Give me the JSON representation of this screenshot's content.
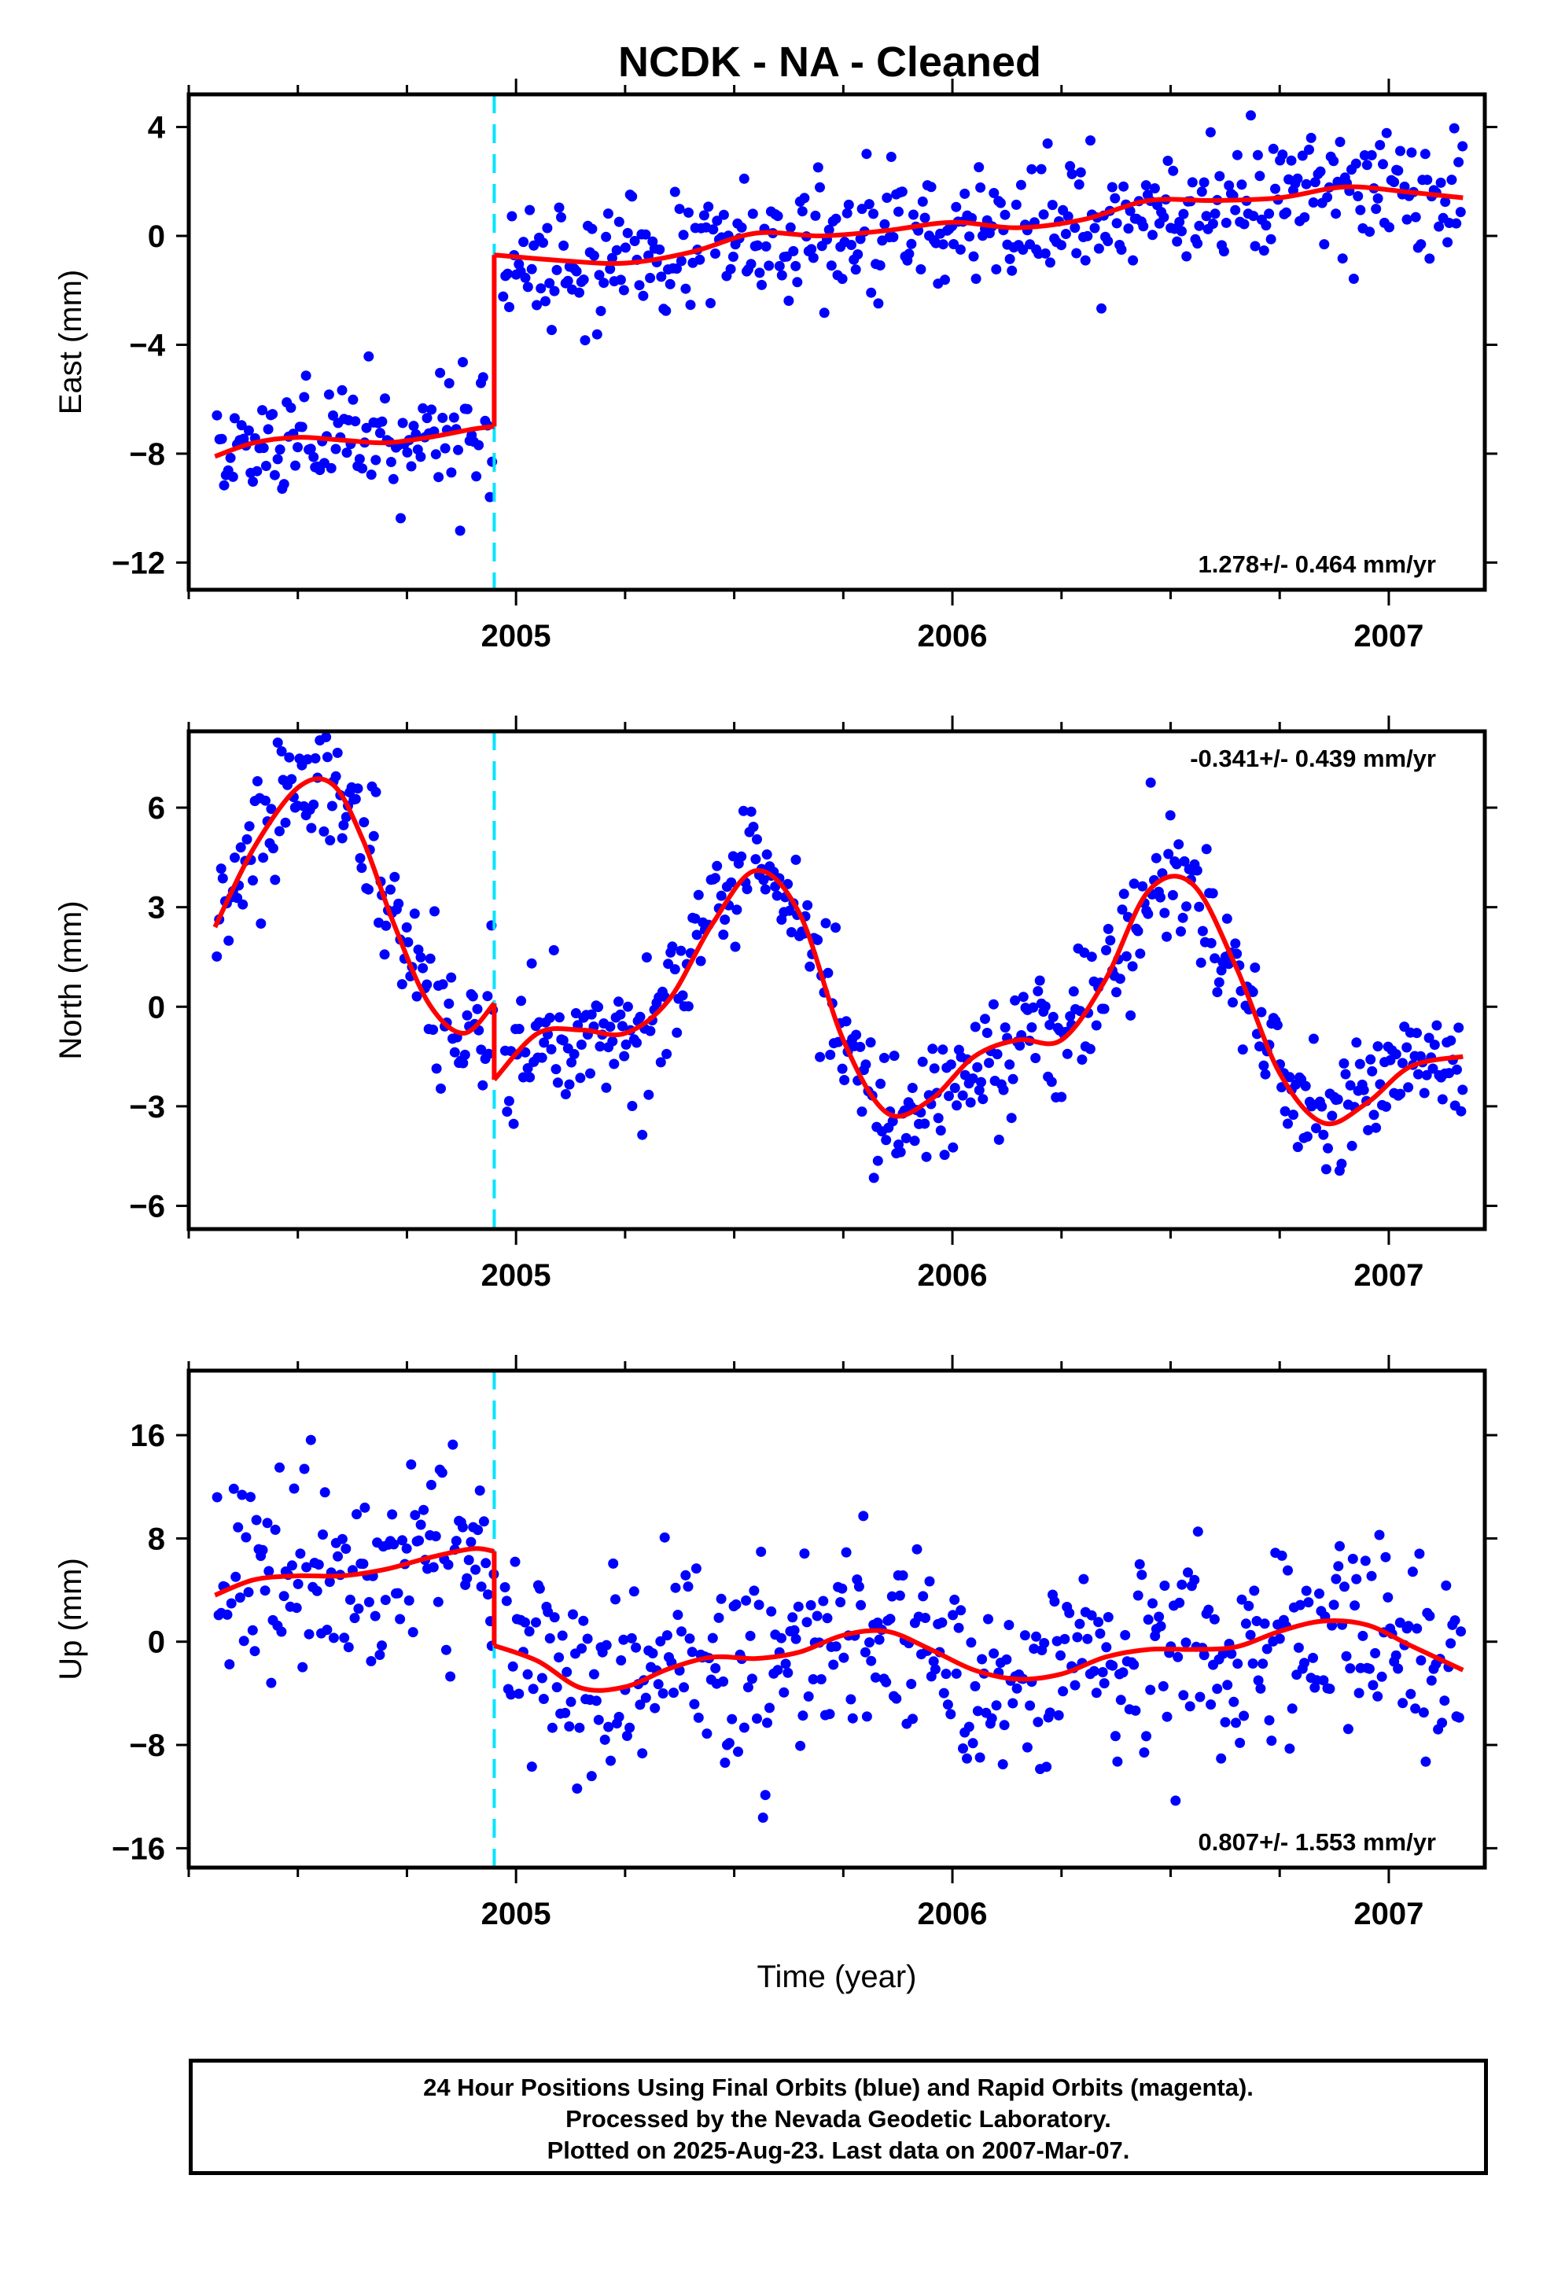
{
  "title": "NCDK  - NA - Cleaned",
  "x_axis_title": "Time (year)",
  "colors": {
    "points": "#0000ff",
    "fit": "#ff0000",
    "break_line": "#00e5ff",
    "frame": "#000000"
  },
  "footer": {
    "line1": "24 Hour Positions Using Final Orbits (blue) and Rapid Orbits (magenta).",
    "line2": "Processed by the Nevada Geodetic Laboratory.",
    "line3": "Plotted on 2025-Aug-23. Last data on 2007-Mar-07."
  },
  "chart_data": [
    {
      "type": "scatter",
      "title": "NCDK  - NA - Cleaned",
      "ylabel": "East (mm)",
      "xlabel": "",
      "xlim": [
        2004.25,
        2007.22
      ],
      "ylim": [
        -13.0,
        5.2
      ],
      "yticks": [
        4,
        0,
        -4,
        -8,
        -12
      ],
      "ytick_labels": [
        "4",
        "0",
        "−4",
        "−8",
        "−12"
      ],
      "xticks": [
        2005,
        2006,
        2007
      ],
      "xtick_labels": [
        "2005",
        "2006",
        "2007"
      ],
      "rate_text": "1.278+/- 0.464 mm/yr",
      "rate_position": "bottom-right",
      "break_epoch": 2004.95,
      "fit_segments": [
        {
          "x": [
            2004.31,
            2004.4,
            2004.5,
            2004.6,
            2004.7,
            2004.8,
            2004.9,
            2004.95
          ],
          "y": [
            -8.1,
            -7.6,
            -7.4,
            -7.5,
            -7.6,
            -7.4,
            -7.1,
            -7.0
          ]
        },
        {
          "x": [
            2004.95,
            2005.1,
            2005.25,
            2005.4,
            2005.55,
            2005.7,
            2005.85,
            2006.0,
            2006.15,
            2006.3,
            2006.45,
            2006.6,
            2006.75,
            2006.9,
            2007.05,
            2007.17
          ],
          "y": [
            -0.7,
            -0.9,
            -1.0,
            -0.6,
            0.1,
            0.0,
            0.2,
            0.5,
            0.3,
            0.6,
            1.3,
            1.3,
            1.4,
            1.8,
            1.6,
            1.4
          ]
        }
      ],
      "series": [
        {
          "name": "Final Orbits",
          "color": "#0000ff",
          "sampling": {
            "x_start": 2004.31,
            "x_end": 2007.17,
            "count": 560,
            "gap": [
              2004.95,
              2004.97
            ],
            "seed": 11,
            "noise_sd": 1.15
          }
        }
      ]
    },
    {
      "type": "scatter",
      "ylabel": "North (mm)",
      "xlabel": "",
      "xlim": [
        2004.25,
        2007.22
      ],
      "ylim": [
        -6.7,
        8.3
      ],
      "yticks": [
        6,
        3,
        0,
        -3,
        -6
      ],
      "ytick_labels": [
        "6",
        "3",
        "0",
        "−3",
        "−6"
      ],
      "xticks": [
        2005,
        2006,
        2007
      ],
      "xtick_labels": [
        "2005",
        "2006",
        "2007"
      ],
      "rate_text": "-0.341+/- 0.439 mm/yr",
      "rate_position": "top-right",
      "break_epoch": 2004.95,
      "fit_segments": [
        {
          "x": [
            2004.31,
            2004.4,
            2004.5,
            2004.58,
            2004.65,
            2004.72,
            2004.8,
            2004.88,
            2004.95
          ],
          "y": [
            2.4,
            4.8,
            6.6,
            6.7,
            5.0,
            2.5,
            0.1,
            -0.8,
            0.1
          ]
        },
        {
          "x": [
            2004.95,
            2005.05,
            2005.15,
            2005.25,
            2005.35,
            2005.45,
            2005.55,
            2005.65,
            2005.75,
            2005.85,
            2005.95,
            2006.05,
            2006.15,
            2006.25,
            2006.35,
            2006.45,
            2006.55,
            2006.65,
            2006.75,
            2006.85,
            2006.95,
            2007.05,
            2007.17
          ],
          "y": [
            -2.2,
            -0.8,
            -0.7,
            -0.8,
            0.2,
            2.5,
            4.1,
            2.8,
            -1.0,
            -3.2,
            -2.8,
            -1.5,
            -1.0,
            -1.0,
            0.8,
            3.5,
            3.7,
            1.2,
            -2.0,
            -3.5,
            -2.9,
            -1.8,
            -1.5
          ]
        }
      ],
      "series": [
        {
          "name": "Final Orbits",
          "color": "#0000ff",
          "sampling": {
            "x_start": 2004.31,
            "x_end": 2007.17,
            "count": 620,
            "gap": [
              2004.95,
              2004.97
            ],
            "seed": 23,
            "noise_sd": 0.95
          }
        }
      ]
    },
    {
      "type": "scatter",
      "ylabel": "Up (mm)",
      "xlabel": "Time (year)",
      "xlim": [
        2004.25,
        2007.22
      ],
      "ylim": [
        -17.5,
        21.0
      ],
      "yticks": [
        16,
        8,
        0,
        -8,
        -16
      ],
      "ytick_labels": [
        "16",
        "8",
        "0",
        "−8",
        "−16"
      ],
      "xticks": [
        2005,
        2006,
        2007
      ],
      "xtick_labels": [
        "2005",
        "2006",
        "2007"
      ],
      "rate_text": "0.807+/- 1.553 mm/yr",
      "rate_position": "bottom-right",
      "break_epoch": 2004.95,
      "fit_segments": [
        {
          "x": [
            2004.31,
            2004.4,
            2004.5,
            2004.6,
            2004.7,
            2004.8,
            2004.9,
            2004.95
          ],
          "y": [
            3.6,
            4.8,
            5.1,
            5.1,
            5.6,
            6.5,
            7.2,
            7.0
          ]
        },
        {
          "x": [
            2004.95,
            2005.05,
            2005.15,
            2005.25,
            2005.35,
            2005.45,
            2005.55,
            2005.65,
            2005.75,
            2005.85,
            2005.95,
            2006.05,
            2006.15,
            2006.25,
            2006.35,
            2006.45,
            2006.55,
            2006.65,
            2006.75,
            2006.85,
            2006.95,
            2007.05,
            2007.17
          ],
          "y": [
            -0.3,
            -1.5,
            -3.6,
            -3.5,
            -2.1,
            -1.2,
            -1.3,
            -0.8,
            0.5,
            0.8,
            -0.6,
            -2.2,
            -2.9,
            -2.5,
            -1.2,
            -0.6,
            -0.6,
            -0.4,
            0.8,
            1.6,
            1.3,
            -0.3,
            -2.2
          ]
        }
      ],
      "series": [
        {
          "name": "Final Orbits",
          "color": "#0000ff",
          "sampling": {
            "x_start": 2004.31,
            "x_end": 2007.17,
            "count": 600,
            "gap": [
              2004.95,
              2004.97
            ],
            "seed": 37,
            "noise_sd": 4.0
          }
        }
      ]
    }
  ]
}
